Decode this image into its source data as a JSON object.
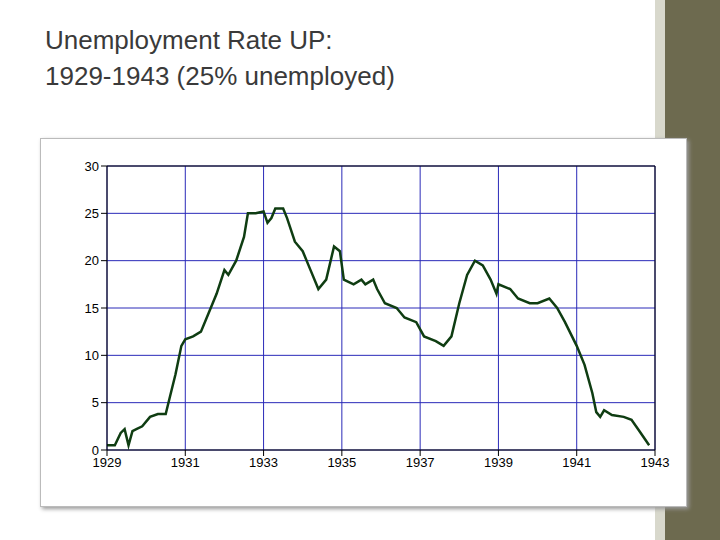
{
  "chart_data": {
    "type": "line",
    "title": "Unemployment Rate UP:\n1929-1943 (25% unemployed)",
    "x": [
      1929.0,
      1929.2,
      1929.35,
      1929.45,
      1929.55,
      1929.65,
      1929.75,
      1929.9,
      1930.1,
      1930.3,
      1930.5,
      1930.6,
      1930.75,
      1930.9,
      1931.0,
      1931.2,
      1931.4,
      1931.6,
      1931.8,
      1932.0,
      1932.1,
      1932.3,
      1932.5,
      1932.6,
      1932.8,
      1933.0,
      1933.1,
      1933.2,
      1933.3,
      1933.5,
      1933.6,
      1933.8,
      1934.0,
      1934.2,
      1934.4,
      1934.6,
      1934.8,
      1934.95,
      1935.05,
      1935.3,
      1935.5,
      1935.6,
      1935.8,
      1935.9,
      1936.1,
      1936.4,
      1936.6,
      1936.9,
      1937.1,
      1937.4,
      1937.6,
      1937.8,
      1938.0,
      1938.2,
      1938.4,
      1938.6,
      1938.8,
      1938.95,
      1939.0,
      1939.3,
      1939.5,
      1939.8,
      1940.0,
      1940.3,
      1940.5,
      1940.7,
      1941.0,
      1941.2,
      1941.4,
      1941.5,
      1941.6,
      1941.7,
      1941.9,
      1942.2,
      1942.4,
      1942.6,
      1942.85
    ],
    "values": [
      0.5,
      0.5,
      1.8,
      2.2,
      0.5,
      2.0,
      2.2,
      2.5,
      3.5,
      3.8,
      3.8,
      5.5,
      8,
      11,
      11.7,
      12,
      12.5,
      14.5,
      16.5,
      19,
      18.5,
      20,
      22.5,
      25,
      25,
      25.2,
      24,
      24.5,
      25.5,
      25.5,
      24.5,
      22,
      21,
      19,
      17,
      18,
      21.5,
      21,
      18,
      17.5,
      18,
      17.5,
      18,
      17,
      15.5,
      15,
      14,
      13.5,
      12,
      11.5,
      11,
      12,
      15.5,
      18.5,
      20,
      19.5,
      18,
      16.5,
      17.5,
      17,
      16,
      15.5,
      15.5,
      16,
      15,
      13.5,
      11,
      9,
      6,
      4,
      3.5,
      4.2,
      3.7,
      3.5,
      3.2,
      2,
      0.5
    ],
    "color": "#0f3d12",
    "xlim": [
      1929,
      1943
    ],
    "xticks": [
      1929,
      1931,
      1933,
      1935,
      1937,
      1939,
      1941,
      1943
    ],
    "ylim": [
      0,
      30
    ],
    "yticks": [
      0,
      5,
      10,
      15,
      20,
      25,
      30
    ],
    "grid": true
  }
}
